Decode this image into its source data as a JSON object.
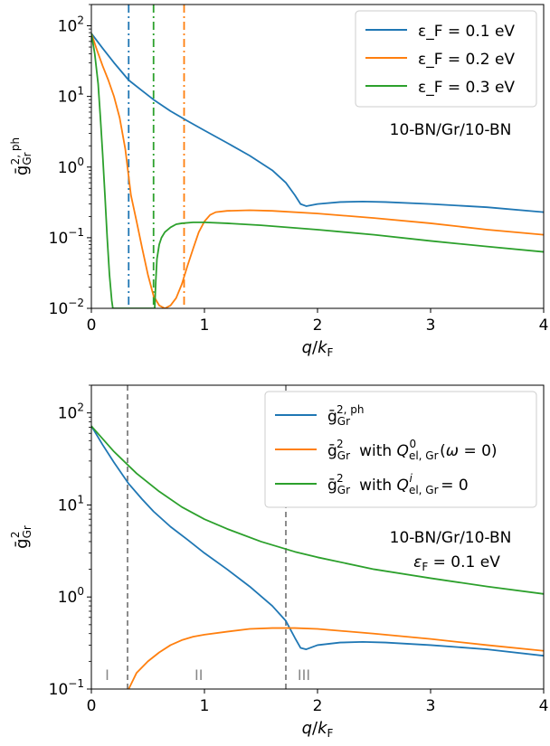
{
  "chart_data": [
    {
      "type": "line",
      "xlabel": "q/k_F",
      "ylabel": "ḡ^{2,ph}_Gr",
      "xlim": [
        0,
        4
      ],
      "ylim": [
        0.01,
        200
      ],
      "yscale": "log",
      "x_ticks": [
        "0",
        "1",
        "2",
        "3",
        "4"
      ],
      "y_ticks": [
        "10^-2",
        "10^-1",
        "10^0",
        "10^1",
        "10^2"
      ],
      "legend_position": "top-right",
      "annotation": "10-BN/Gr/10-BN",
      "series": [
        {
          "name": "ε_F = 0.1 eV",
          "color": "#1f77b4",
          "x": [
            0,
            0.1,
            0.2,
            0.33,
            0.45,
            0.55,
            0.7,
            0.85,
            1.0,
            1.2,
            1.4,
            1.6,
            1.72,
            1.8,
            1.85,
            1.9,
            2.0,
            2.2,
            2.4,
            2.6,
            3.0,
            3.5,
            4.0
          ],
          "y": [
            78,
            48,
            30,
            17,
            12,
            9,
            6.2,
            4.5,
            3.3,
            2.2,
            1.45,
            0.9,
            0.6,
            0.4,
            0.3,
            0.28,
            0.3,
            0.32,
            0.325,
            0.32,
            0.3,
            0.27,
            0.23
          ]
        },
        {
          "name": "ε_F = 0.2 eV",
          "color": "#ff7f0e",
          "x": [
            0,
            0.05,
            0.1,
            0.15,
            0.2,
            0.25,
            0.3,
            0.35,
            0.4,
            0.45,
            0.5,
            0.55,
            0.6,
            0.65,
            0.7,
            0.75,
            0.8,
            0.85,
            0.9,
            0.95,
            1.0,
            1.05,
            1.1,
            1.2,
            1.4,
            1.6,
            2.0,
            2.5,
            3.0,
            3.5,
            4.0
          ],
          "y": [
            78,
            45,
            27,
            17,
            10,
            5,
            1.8,
            0.4,
            0.17,
            0.07,
            0.03,
            0.015,
            0.011,
            0.01,
            0.011,
            0.014,
            0.022,
            0.04,
            0.07,
            0.12,
            0.17,
            0.21,
            0.23,
            0.24,
            0.245,
            0.24,
            0.22,
            0.19,
            0.16,
            0.13,
            0.11
          ]
        },
        {
          "name": "ε_F = 0.3 eV",
          "color": "#2ca02c",
          "x": [
            0,
            0.03,
            0.06,
            0.08,
            0.1,
            0.12,
            0.14,
            0.16,
            0.18,
            0.19,
            0.56,
            0.57,
            0.58,
            0.6,
            0.62,
            0.65,
            0.7,
            0.75,
            0.8,
            0.9,
            1.0,
            1.2,
            1.5,
            2.0,
            2.5,
            3.0,
            3.5,
            4.0
          ],
          "y": [
            78,
            40,
            15,
            5,
            1.5,
            0.4,
            0.1,
            0.03,
            0.013,
            0.01,
            0.01,
            0.025,
            0.05,
            0.08,
            0.1,
            0.12,
            0.14,
            0.155,
            0.16,
            0.165,
            0.165,
            0.16,
            0.15,
            0.13,
            0.11,
            0.09,
            0.075,
            0.063
          ]
        }
      ],
      "vertical_lines": [
        {
          "x": 0.33,
          "color": "#1f77b4",
          "style": "dash-dot"
        },
        {
          "x": 0.55,
          "color": "#2ca02c",
          "style": "dash-dot"
        },
        {
          "x": 0.82,
          "color": "#ff7f0e",
          "style": "dash-dot"
        }
      ]
    },
    {
      "type": "line",
      "xlabel": "q/k_F",
      "ylabel": "ḡ^2_Gr",
      "xlim": [
        0,
        4
      ],
      "ylim": [
        0.1,
        200
      ],
      "yscale": "log",
      "x_ticks": [
        "0",
        "1",
        "2",
        "3",
        "4"
      ],
      "y_ticks": [
        "10^-1",
        "10^0",
        "10^1",
        "10^2"
      ],
      "legend_position": "top-right",
      "annotation": [
        "10-BN/Gr/10-BN",
        "ε_F = 0.1 eV"
      ],
      "series": [
        {
          "name": "ḡ^{2,ph}_Gr",
          "color": "#1f77b4",
          "x": [
            0,
            0.1,
            0.2,
            0.33,
            0.45,
            0.55,
            0.7,
            0.85,
            1.0,
            1.2,
            1.4,
            1.6,
            1.72,
            1.8,
            1.85,
            1.9,
            2.0,
            2.2,
            2.4,
            2.6,
            3.0,
            3.5,
            4.0
          ],
          "y": [
            72,
            45,
            29,
            17,
            11.5,
            8.5,
            5.8,
            4.2,
            3.0,
            2.0,
            1.3,
            0.8,
            0.55,
            0.36,
            0.28,
            0.27,
            0.3,
            0.32,
            0.325,
            0.32,
            0.3,
            0.27,
            0.23
          ]
        },
        {
          "name": "ḡ^2_Gr with Q^0_el,Gr(ω = 0)",
          "color": "#ff7f0e",
          "x": [
            0.33,
            0.4,
            0.5,
            0.6,
            0.7,
            0.8,
            0.9,
            1.0,
            1.2,
            1.4,
            1.6,
            1.8,
            2.0,
            2.5,
            3.0,
            3.5,
            4.0
          ],
          "y": [
            0.1,
            0.15,
            0.2,
            0.25,
            0.3,
            0.34,
            0.37,
            0.39,
            0.42,
            0.45,
            0.46,
            0.46,
            0.45,
            0.4,
            0.35,
            0.3,
            0.26
          ]
        },
        {
          "name": "ḡ^2_Gr with Q^i_el,Gr = 0",
          "color": "#2ca02c",
          "x": [
            0,
            0.2,
            0.4,
            0.6,
            0.8,
            1.0,
            1.2,
            1.5,
            1.8,
            2.0,
            2.5,
            3.0,
            3.5,
            4.0
          ],
          "y": [
            72,
            38,
            22,
            14,
            9.5,
            7,
            5.5,
            4,
            3.1,
            2.7,
            2.0,
            1.6,
            1.3,
            1.08
          ]
        }
      ],
      "vertical_lines": [
        {
          "x": 0.32,
          "color": "#808080",
          "style": "dashed"
        },
        {
          "x": 1.72,
          "color": "#808080",
          "style": "dashed"
        }
      ],
      "region_labels": [
        {
          "text": "I",
          "x": 0.14
        },
        {
          "text": "II",
          "x": 0.95
        },
        {
          "text": "III",
          "x": 1.88
        }
      ]
    }
  ]
}
